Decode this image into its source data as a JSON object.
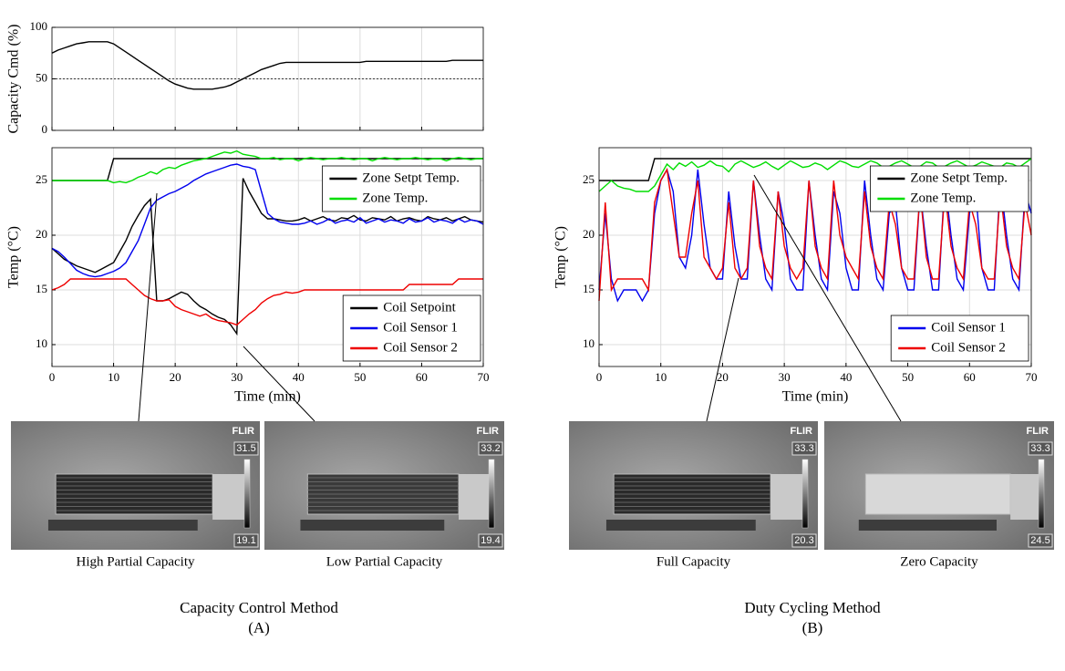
{
  "chart_data": [
    {
      "type": "line",
      "ylabel": "Capacity Cmd (%)",
      "xlim": [
        0,
        70
      ],
      "xticks": [
        0,
        10,
        20,
        30,
        40,
        50,
        60,
        70
      ],
      "xtick_labels": false,
      "ylim": [
        0,
        100
      ],
      "yticks": [
        0,
        50,
        100
      ],
      "grid": true,
      "reference_line": 50,
      "x": [
        0,
        1,
        2,
        3,
        4,
        5,
        6,
        7,
        8,
        9,
        10,
        11,
        12,
        13,
        14,
        15,
        16,
        17,
        18,
        19,
        20,
        21,
        22,
        23,
        24,
        25,
        26,
        27,
        28,
        29,
        30,
        31,
        32,
        33,
        34,
        35,
        36,
        37,
        38,
        39,
        40,
        41,
        42,
        43,
        44,
        45,
        46,
        47,
        48,
        49,
        50,
        51,
        52,
        53,
        54,
        55,
        56,
        57,
        58,
        59,
        60,
        61,
        62,
        63,
        64,
        65,
        66,
        67,
        68,
        69,
        70
      ],
      "series": [
        {
          "color": "#000000",
          "values": [
            75,
            78,
            80,
            82,
            84,
            85,
            86,
            86,
            86,
            86,
            84,
            80,
            76,
            72,
            68,
            64,
            60,
            56,
            52,
            48,
            45,
            43,
            41,
            40,
            40,
            40,
            40,
            41,
            42,
            44,
            47,
            50,
            53,
            56,
            59,
            61,
            63,
            65,
            66,
            66,
            66,
            66,
            66,
            66,
            66,
            66,
            66,
            66,
            66,
            66,
            66,
            67,
            67,
            67,
            67,
            67,
            67,
            67,
            67,
            67,
            67,
            67,
            67,
            67,
            67,
            68,
            68,
            68,
            68,
            68,
            68
          ]
        }
      ]
    },
    {
      "type": "line",
      "xlabel": "Time (min)",
      "ylabel": "Temp (°C)",
      "xlim": [
        0,
        70
      ],
      "xticks": [
        0,
        10,
        20,
        30,
        40,
        50,
        60,
        70
      ],
      "ylim": [
        8,
        28
      ],
      "yticks": [
        10,
        15,
        20,
        25
      ],
      "grid": true,
      "x": [
        0,
        1,
        2,
        3,
        4,
        5,
        6,
        7,
        8,
        9,
        10,
        11,
        12,
        13,
        14,
        15,
        16,
        17,
        18,
        19,
        20,
        21,
        22,
        23,
        24,
        25,
        26,
        27,
        28,
        29,
        30,
        31,
        32,
        33,
        34,
        35,
        36,
        37,
        38,
        39,
        40,
        41,
        42,
        43,
        44,
        45,
        46,
        47,
        48,
        49,
        50,
        51,
        52,
        53,
        54,
        55,
        56,
        57,
        58,
        59,
        60,
        61,
        62,
        63,
        64,
        65,
        66,
        67,
        68,
        69,
        70
      ],
      "series": [
        {
          "name": "Zone Setpt Temp.",
          "color": "#000000",
          "legend": "upper right",
          "values": [
            25,
            25,
            25,
            25,
            25,
            25,
            25,
            25,
            25,
            25,
            27,
            27,
            27,
            27,
            27,
            27,
            27,
            27,
            27,
            27,
            27,
            27,
            27,
            27,
            27,
            27,
            27,
            27,
            27,
            27,
            27,
            27,
            27,
            27,
            27,
            27,
            27,
            27,
            27,
            27,
            27,
            27,
            27,
            27,
            27,
            27,
            27,
            27,
            27,
            27,
            27,
            27,
            27,
            27,
            27,
            27,
            27,
            27,
            27,
            27,
            27,
            27,
            27,
            27,
            27,
            27,
            27,
            27,
            27,
            27,
            27
          ]
        },
        {
          "name": "Zone Temp.",
          "color": "#00dd00",
          "legend": "upper right",
          "values": [
            25,
            25,
            25,
            25,
            25,
            25,
            25,
            25,
            25,
            25,
            24.8,
            24.9,
            24.8,
            25,
            25.3,
            25.5,
            25.8,
            25.6,
            26,
            26.2,
            26.1,
            26.4,
            26.6,
            26.8,
            26.9,
            27,
            27.2,
            27.4,
            27.6,
            27.5,
            27.7,
            27.4,
            27.3,
            27.2,
            27,
            27,
            27.1,
            26.9,
            27,
            27,
            26.8,
            27,
            27.1,
            27,
            26.9,
            27,
            27,
            27.1,
            27,
            26.9,
            27,
            27,
            26.8,
            27,
            27.1,
            27,
            26.9,
            27,
            27,
            27.1,
            27,
            26.9,
            27,
            27,
            26.8,
            27,
            27.1,
            27,
            26.9,
            27,
            27
          ]
        },
        {
          "name": "Coil Setpoint",
          "color": "#000000",
          "legend": "lower right",
          "values": [
            18.8,
            18.3,
            17.8,
            17.5,
            17.2,
            17,
            16.8,
            16.6,
            16.9,
            17.2,
            17.5,
            18.5,
            19.5,
            20.8,
            21.8,
            22.7,
            23.3,
            14,
            14,
            14.2,
            14.5,
            14.8,
            14.6,
            14,
            13.5,
            13.2,
            12.8,
            12.5,
            12.3,
            11.8,
            11,
            25.2,
            24,
            23,
            22,
            21.5,
            21.5,
            21.4,
            21.3,
            21.3,
            21.4,
            21.6,
            21.3,
            21.5,
            21.7,
            21.4,
            21.3,
            21.6,
            21.5,
            21.8,
            21.4,
            21.3,
            21.6,
            21.5,
            21.4,
            21.7,
            21.3,
            21.5,
            21.6,
            21.4,
            21.3,
            21.7,
            21.5,
            21.4,
            21.6,
            21.3,
            21.5,
            21.7,
            21.4,
            21.3,
            21.2
          ]
        },
        {
          "name": "Coil Sensor 1",
          "color": "#0000ee",
          "legend": "lower right",
          "values": [
            18.8,
            18.5,
            18,
            17.4,
            16.8,
            16.5,
            16.3,
            16.2,
            16.3,
            16.5,
            16.7,
            17,
            17.5,
            18.5,
            19.5,
            21,
            22.5,
            23.2,
            23.5,
            23.8,
            24,
            24.3,
            24.6,
            25,
            25.3,
            25.6,
            25.8,
            26,
            26.2,
            26.4,
            26.5,
            26.3,
            26.2,
            26,
            24,
            22,
            21.5,
            21.2,
            21.1,
            21,
            21,
            21.1,
            21.3,
            21,
            21.2,
            21.5,
            21.1,
            21.3,
            21.4,
            21.2,
            21.6,
            21.1,
            21.3,
            21.5,
            21.2,
            21.4,
            21.3,
            21.1,
            21.5,
            21.2,
            21.3,
            21.6,
            21.2,
            21.4,
            21.3,
            21.1,
            21.5,
            21.2,
            21.4,
            21.3,
            21
          ]
        },
        {
          "name": "Coil Sensor 2",
          "color": "#ee0000",
          "legend": "lower right",
          "values": [
            15,
            15.2,
            15.5,
            16,
            16,
            16,
            16,
            16,
            16,
            16,
            16,
            16,
            16,
            15.5,
            15,
            14.5,
            14.2,
            14,
            14,
            14.1,
            13.5,
            13.2,
            13,
            12.8,
            12.6,
            12.8,
            12.4,
            12.2,
            12.1,
            12,
            11.8,
            12.3,
            12.8,
            13.2,
            13.8,
            14.2,
            14.5,
            14.6,
            14.8,
            14.7,
            14.8,
            15,
            15,
            15,
            15,
            15,
            15,
            15,
            15,
            15,
            15,
            15,
            15,
            15,
            15,
            15,
            15,
            15,
            15.5,
            15.5,
            15.5,
            15.5,
            15.5,
            15.5,
            15.5,
            15.5,
            16,
            16,
            16,
            16,
            16
          ]
        }
      ]
    },
    {
      "type": "line",
      "xlabel": "Time (min)",
      "ylabel": "Temp (°C)",
      "xlim": [
        0,
        70
      ],
      "xticks": [
        0,
        10,
        20,
        30,
        40,
        50,
        60,
        70
      ],
      "ylim": [
        8,
        28
      ],
      "yticks": [
        10,
        15,
        20,
        25
      ],
      "grid": true,
      "x": [
        0,
        1,
        2,
        3,
        4,
        5,
        6,
        7,
        8,
        9,
        10,
        11,
        12,
        13,
        14,
        15,
        16,
        17,
        18,
        19,
        20,
        21,
        22,
        23,
        24,
        25,
        26,
        27,
        28,
        29,
        30,
        31,
        32,
        33,
        34,
        35,
        36,
        37,
        38,
        39,
        40,
        41,
        42,
        43,
        44,
        45,
        46,
        47,
        48,
        49,
        50,
        51,
        52,
        53,
        54,
        55,
        56,
        57,
        58,
        59,
        60,
        61,
        62,
        63,
        64,
        65,
        66,
        67,
        68,
        69,
        70
      ],
      "series": [
        {
          "name": "Zone Setpt Temp.",
          "color": "#000000",
          "legend": "upper right",
          "values": [
            25,
            25,
            25,
            25,
            25,
            25,
            25,
            25,
            25,
            27,
            27,
            27,
            27,
            27,
            27,
            27,
            27,
            27,
            27,
            27,
            27,
            27,
            27,
            27,
            27,
            27,
            27,
            27,
            27,
            27,
            27,
            27,
            27,
            27,
            27,
            27,
            27,
            27,
            27,
            27,
            27,
            27,
            27,
            27,
            27,
            27,
            27,
            27,
            27,
            27,
            27,
            27,
            27,
            27,
            27,
            27,
            27,
            27,
            27,
            27,
            27,
            27,
            27,
            27,
            27,
            27,
            27,
            27,
            27,
            27,
            27
          ]
        },
        {
          "name": "Zone Temp.",
          "color": "#00dd00",
          "legend": "upper right",
          "values": [
            24,
            24.5,
            25,
            24.5,
            24.3,
            24.2,
            24,
            24,
            24,
            24.5,
            25.5,
            26.5,
            26,
            26.6,
            26.3,
            26.7,
            26.2,
            26.4,
            26.8,
            26.4,
            26.3,
            25.8,
            26.5,
            26.8,
            26.5,
            26.2,
            26.4,
            26.7,
            26.3,
            26,
            26.4,
            26.8,
            26.5,
            26.2,
            26.3,
            26.6,
            26.4,
            26,
            26.4,
            26.8,
            26.6,
            26.3,
            26.2,
            26.5,
            26.8,
            26.6,
            26.2,
            26.3,
            26.6,
            26.8,
            26.5,
            26.2,
            26.3,
            26.7,
            26.6,
            26.2,
            26.3,
            26.6,
            26.8,
            26.5,
            26.2,
            26.4,
            26.7,
            26.5,
            26.3,
            26.2,
            26.6,
            26.5,
            26.2,
            26.6,
            27
          ]
        },
        {
          "name": "Coil Sensor 1",
          "color": "#0000ee",
          "legend": "lower right",
          "values": [
            15,
            22,
            16,
            14,
            15,
            15,
            15,
            14,
            15,
            22,
            25,
            26,
            24,
            18,
            17,
            20,
            26,
            21,
            17,
            16,
            16,
            24,
            19,
            16,
            16,
            25,
            20,
            16,
            15,
            24,
            21,
            16,
            15,
            15,
            25,
            20,
            16,
            15,
            24,
            22,
            17,
            15,
            15,
            25,
            20,
            16,
            15,
            22,
            23,
            17,
            15,
            15,
            24,
            19,
            15,
            15,
            25,
            20,
            16,
            15,
            22,
            24,
            17,
            15,
            15,
            25,
            20,
            16,
            15,
            24,
            22
          ]
        },
        {
          "name": "Coil Sensor 2",
          "color": "#ee0000",
          "legend": "lower right",
          "values": [
            14,
            23,
            15,
            16,
            16,
            16,
            16,
            16,
            15,
            23,
            25,
            26,
            22,
            18,
            18,
            22,
            25,
            18,
            17,
            16,
            17,
            23,
            17,
            16,
            17,
            25,
            19,
            17,
            16,
            24,
            19,
            17,
            16,
            17,
            25,
            19,
            17,
            16,
            25,
            20,
            18,
            17,
            16,
            24,
            19,
            17,
            16,
            23,
            21,
            17,
            16,
            16,
            24,
            18,
            16,
            16,
            24,
            19,
            17,
            16,
            23,
            21,
            17,
            16,
            16,
            24,
            19,
            17,
            16,
            23,
            20
          ]
        }
      ]
    }
  ],
  "thermal_images": [
    {
      "brand": "FLIR",
      "scale_max": 31.5,
      "scale_min": 19.1,
      "caption": "High Partial Capacity"
    },
    {
      "brand": "FLIR",
      "scale_max": 33.2,
      "scale_min": 19.4,
      "caption": "Low Partial Capacity"
    },
    {
      "brand": "FLIR",
      "scale_max": 33.3,
      "scale_min": 20.3,
      "caption": "Full Capacity"
    },
    {
      "brand": "FLIR",
      "scale_max": 33.3,
      "scale_min": 24.5,
      "caption": "Zero Capacity"
    }
  ],
  "panels": [
    {
      "title": "Capacity Control Method",
      "label": "(A)"
    },
    {
      "title": "Duty Cycling Method",
      "label": "(B)"
    }
  ]
}
